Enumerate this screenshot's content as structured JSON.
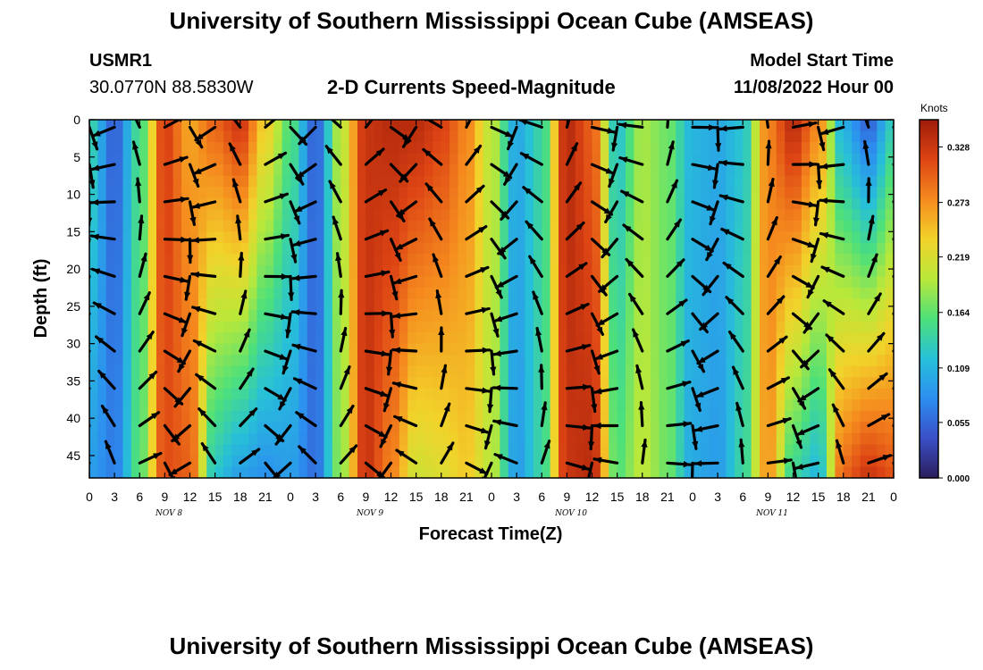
{
  "header": {
    "title": "University of Southern Mississippi Ocean Cube (AMSEAS)",
    "station": "USMR1",
    "coords": "30.0770N  88.5830W",
    "plot_title": "2-D Currents Speed-Magnitude",
    "model_start_label": "Model Start Time",
    "model_start_value": "11/08/2022 Hour 00"
  },
  "footer": {
    "title": "University of Southern Mississippi Ocean Cube (AMSEAS)"
  },
  "colors": {
    "colormap": [
      "#2b1e5c",
      "#3a4fc8",
      "#2c8ef0",
      "#27c0d8",
      "#4de07a",
      "#b9e83a",
      "#f2d22a",
      "#f58a1e",
      "#dd4414",
      "#9e1c0a"
    ]
  },
  "chart_data": {
    "type": "heatmap",
    "title": "2-D Currents Speed-Magnitude",
    "xlabel": "Forecast Time(Z)",
    "ylabel": "Depth (ft)",
    "colorbar_label": "Knots",
    "colorbar_ticks": [
      "0.328",
      "0.273",
      "0.219",
      "0.164",
      "0.109",
      "0.055",
      "0.000"
    ],
    "x_ticks": [
      "0",
      "3",
      "6",
      "9",
      "12",
      "15",
      "18",
      "21",
      "0",
      "3",
      "6",
      "9",
      "12",
      "15",
      "18",
      "21",
      "0",
      "3",
      "6",
      "9",
      "12",
      "15",
      "18",
      "21",
      "0",
      "3",
      "6",
      "9",
      "12",
      "15",
      "18",
      "21",
      "0"
    ],
    "day_labels": [
      "NOV 8",
      "NOV 9",
      "NOV 10",
      "NOV 11"
    ],
    "y_ticks": [
      "0",
      "5",
      "10",
      "15",
      "20",
      "25",
      "30",
      "35",
      "40",
      "45"
    ],
    "xlim_hours": [
      0,
      96
    ],
    "ylim_ft": [
      0,
      48
    ],
    "speed_range_knots": [
      0.0,
      0.355
    ],
    "speed_profile_hours": [
      0,
      3,
      6,
      9,
      12,
      15,
      18,
      21,
      24,
      27,
      30,
      33,
      36,
      39,
      42,
      45,
      48,
      51,
      54,
      57,
      60,
      63,
      66,
      69,
      72,
      75,
      78,
      81,
      84,
      87,
      90,
      93,
      96
    ],
    "speed_profile_surface": [
      0.14,
      0.05,
      0.15,
      0.32,
      0.26,
      0.3,
      0.33,
      0.24,
      0.16,
      0.05,
      0.2,
      0.33,
      0.34,
      0.34,
      0.32,
      0.28,
      0.2,
      0.1,
      0.14,
      0.34,
      0.3,
      0.12,
      0.19,
      0.17,
      0.11,
      0.1,
      0.12,
      0.28,
      0.34,
      0.28,
      0.1,
      0.05,
      0.13
    ],
    "speed_profile_bottom": [
      0.09,
      0.07,
      0.16,
      0.31,
      0.3,
      0.12,
      0.09,
      0.08,
      0.09,
      0.06,
      0.18,
      0.33,
      0.28,
      0.21,
      0.22,
      0.24,
      0.2,
      0.09,
      0.14,
      0.33,
      0.34,
      0.16,
      0.2,
      0.17,
      0.1,
      0.09,
      0.14,
      0.27,
      0.14,
      0.11,
      0.3,
      0.33,
      0.31
    ]
  }
}
